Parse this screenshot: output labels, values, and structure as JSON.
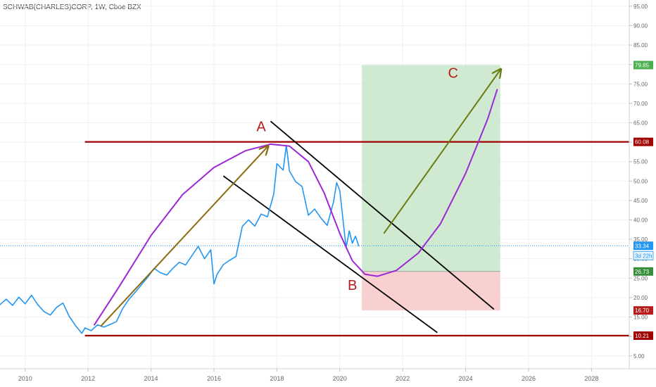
{
  "chart_data": {
    "type": "line",
    "title": "SCHWAB(CHARLES)CORP, 1W, Cboe BZX",
    "x_ticks": [
      "2010",
      "2012",
      "2014",
      "2016",
      "2018",
      "2020",
      "2022",
      "2024",
      "2026",
      "2028"
    ],
    "x_range": [
      2009.2,
      2029.2
    ],
    "y_ticks": [
      "5.00",
      "10.00",
      "15.00",
      "20.00",
      "25.00",
      "30.00",
      "35.00",
      "40.00",
      "45.00",
      "50.00",
      "55.00",
      "60.00",
      "65.00",
      "70.00",
      "75.00",
      "80.00",
      "85.00",
      "90.00",
      "95.00"
    ],
    "y_range": [
      1.7,
      96.6
    ],
    "grid": true,
    "series": [
      {
        "color": "#2196f3",
        "points": [
          [
            2009.2,
            18.2
          ],
          [
            2009.4,
            19.6
          ],
          [
            2009.6,
            18.0
          ],
          [
            2009.8,
            20.1
          ],
          [
            2010.0,
            18.4
          ],
          [
            2010.2,
            20.6
          ],
          [
            2010.4,
            18.2
          ],
          [
            2010.6,
            16.4
          ],
          [
            2010.8,
            15.5
          ],
          [
            2011.0,
            17.5
          ],
          [
            2011.2,
            18.6
          ],
          [
            2011.4,
            15.2
          ],
          [
            2011.6,
            12.8
          ],
          [
            2011.8,
            10.8
          ],
          [
            2011.9,
            12.2
          ],
          [
            2012.1,
            11.5
          ],
          [
            2012.3,
            13.0
          ],
          [
            2012.5,
            12.4
          ],
          [
            2012.7,
            13.1
          ],
          [
            2012.9,
            13.8
          ],
          [
            2013.1,
            17.2
          ],
          [
            2013.3,
            19.6
          ],
          [
            2013.5,
            21.4
          ],
          [
            2013.7,
            23.4
          ],
          [
            2013.9,
            25.3
          ],
          [
            2014.1,
            27.5
          ],
          [
            2014.3,
            26.4
          ],
          [
            2014.5,
            25.8
          ],
          [
            2014.7,
            27.6
          ],
          [
            2014.9,
            29.1
          ],
          [
            2015.1,
            28.4
          ],
          [
            2015.3,
            30.8
          ],
          [
            2015.5,
            33.2
          ],
          [
            2015.7,
            30.0
          ],
          [
            2015.9,
            32.3
          ],
          [
            2016.0,
            23.5
          ],
          [
            2016.1,
            26.0
          ],
          [
            2016.3,
            28.5
          ],
          [
            2016.5,
            29.6
          ],
          [
            2016.7,
            30.6
          ],
          [
            2016.9,
            38.3
          ],
          [
            2017.1,
            40.0
          ],
          [
            2017.3,
            38.4
          ],
          [
            2017.5,
            41.5
          ],
          [
            2017.7,
            40.8
          ],
          [
            2017.9,
            46.6
          ],
          [
            2018.0,
            54.5
          ],
          [
            2018.2,
            52.8
          ],
          [
            2018.3,
            59.2
          ],
          [
            2018.4,
            52.6
          ],
          [
            2018.6,
            49.8
          ],
          [
            2018.8,
            48.6
          ],
          [
            2019.0,
            41.2
          ],
          [
            2019.2,
            42.8
          ],
          [
            2019.4,
            40.5
          ],
          [
            2019.6,
            38.6
          ],
          [
            2019.8,
            44.6
          ],
          [
            2019.9,
            49.6
          ],
          [
            2020.0,
            47.5
          ],
          [
            2020.2,
            32.8
          ],
          [
            2020.3,
            37.2
          ],
          [
            2020.4,
            34.0
          ],
          [
            2020.5,
            35.8
          ],
          [
            2020.6,
            33.34
          ]
        ]
      },
      {
        "color": "#9c27d8",
        "points": [
          [
            2012.2,
            13.0
          ],
          [
            2013.0,
            23.0
          ],
          [
            2014.0,
            36.0
          ],
          [
            2015.0,
            46.5
          ],
          [
            2016.0,
            53.5
          ],
          [
            2017.0,
            57.8
          ],
          [
            2017.8,
            59.5
          ],
          [
            2018.4,
            59.0
          ],
          [
            2019.0,
            55.0
          ],
          [
            2019.5,
            47.0
          ],
          [
            2020.0,
            36.5
          ],
          [
            2020.4,
            29.5
          ],
          [
            2020.8,
            26.0
          ],
          [
            2021.2,
            25.5
          ],
          [
            2021.8,
            27.0
          ],
          [
            2022.5,
            31.5
          ],
          [
            2023.2,
            39.0
          ],
          [
            2024.0,
            52.0
          ],
          [
            2024.7,
            66.0
          ],
          [
            2025.0,
            73.5
          ]
        ]
      }
    ],
    "horizontal_lines": [
      {
        "y": 60.08,
        "label": "60.08",
        "x_from": 2011.9
      },
      {
        "y": 10.21,
        "label": "10.21",
        "x_from": 2011.9
      }
    ],
    "current_price": {
      "y": 33.34,
      "label": "33.34",
      "countdown": "3d 22h"
    },
    "price_labels": [
      {
        "y": 79.85,
        "label": "79.85",
        "color": "#4caf50"
      },
      {
        "y": 26.73,
        "label": "26.73",
        "color": "#388e3c"
      },
      {
        "y": 16.7,
        "label": "16.70",
        "color": "#b71c1c"
      }
    ],
    "zones": [
      {
        "x0": 2020.7,
        "x1": 2025.1,
        "y0": 26.73,
        "y1": 79.85,
        "color": "#c8e6c9"
      },
      {
        "x0": 2020.7,
        "x1": 2025.1,
        "y0": 16.7,
        "y1": 26.73,
        "color": "#f8c8c8"
      }
    ],
    "trend_lines": [
      {
        "x0": 2017.8,
        "y0": 65.4,
        "x1": 2024.9,
        "y1": 17.0,
        "color": "#000000"
      },
      {
        "x0": 2016.3,
        "y0": 51.3,
        "x1": 2023.1,
        "y1": 11.0,
        "color": "#000000"
      }
    ],
    "arrows": [
      {
        "x0": 2012.4,
        "y0": 12.6,
        "x1": 2017.7,
        "y1": 58.8,
        "color": "#8a6b10"
      },
      {
        "x0": 2021.4,
        "y0": 36.5,
        "x1": 2025.1,
        "y1": 78.6,
        "color": "#6b7a10"
      }
    ],
    "annotations": [
      {
        "text": "A",
        "x": 2017.5,
        "y": 62.8
      },
      {
        "text": "B",
        "x": 2020.4,
        "y": 22.0
      },
      {
        "text": "C",
        "x": 2023.6,
        "y": 76.6
      }
    ],
    "colors": {
      "annotation": "#b71c1c",
      "support_resistance": "#a00000",
      "current_price": "#2196f3"
    }
  }
}
